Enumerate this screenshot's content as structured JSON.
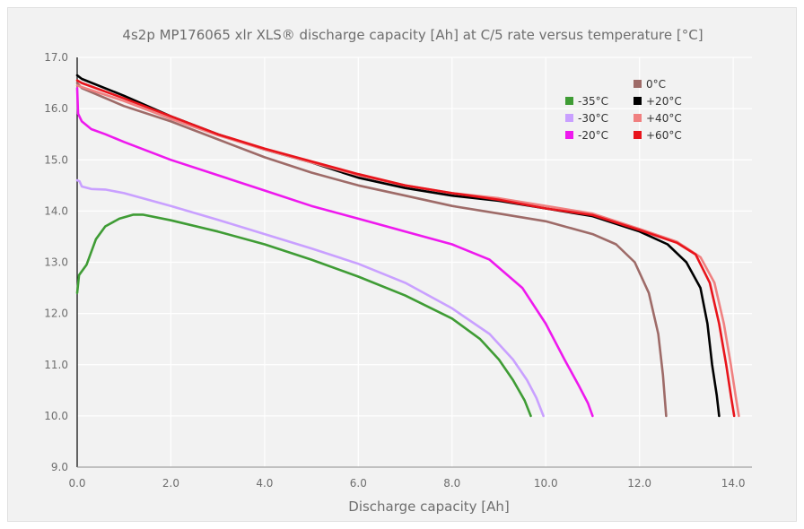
{
  "chart_data": {
    "type": "line",
    "title": "4s2p MP176065 xlr XLS® discharge capacity [Ah] at C/5 rate versus temperature [°C]",
    "xlabel": "Discharge capacity [Ah]",
    "ylabel": "",
    "xlim": [
      0,
      14.4
    ],
    "ylim": [
      9.0,
      17.0
    ],
    "x_ticks": [
      "0.0",
      "2.0",
      "4.0",
      "6.0",
      "8.0",
      "10.0",
      "12.0",
      "14.0"
    ],
    "y_ticks": [
      "9.0",
      "10.0",
      "11.0",
      "12.0",
      "13.0",
      "14.0",
      "15.0",
      "16.0",
      "17.0"
    ],
    "grid": true,
    "legend_position": "top-right",
    "series": [
      {
        "name": "-35°C",
        "color": "#3f9c35",
        "points": [
          [
            0.0,
            12.4
          ],
          [
            0.04,
            12.75
          ],
          [
            0.2,
            12.95
          ],
          [
            0.4,
            13.45
          ],
          [
            0.6,
            13.7
          ],
          [
            0.9,
            13.85
          ],
          [
            1.2,
            13.93
          ],
          [
            1.4,
            13.93
          ],
          [
            2.0,
            13.82
          ],
          [
            3.0,
            13.6
          ],
          [
            4.0,
            13.35
          ],
          [
            5.0,
            13.05
          ],
          [
            6.0,
            12.72
          ],
          [
            7.0,
            12.35
          ],
          [
            8.0,
            11.9
          ],
          [
            8.6,
            11.5
          ],
          [
            9.0,
            11.1
          ],
          [
            9.3,
            10.7
          ],
          [
            9.55,
            10.3
          ],
          [
            9.68,
            10.0
          ]
        ]
      },
      {
        "name": "-30°C",
        "color": "#c9a0ff",
        "points": [
          [
            0.0,
            14.6
          ],
          [
            0.05,
            14.58
          ],
          [
            0.1,
            14.48
          ],
          [
            0.3,
            14.43
          ],
          [
            0.6,
            14.42
          ],
          [
            1.0,
            14.35
          ],
          [
            2.0,
            14.1
          ],
          [
            3.0,
            13.83
          ],
          [
            4.0,
            13.55
          ],
          [
            5.0,
            13.27
          ],
          [
            6.0,
            12.97
          ],
          [
            7.0,
            12.6
          ],
          [
            8.0,
            12.1
          ],
          [
            8.8,
            11.6
          ],
          [
            9.3,
            11.1
          ],
          [
            9.6,
            10.7
          ],
          [
            9.8,
            10.35
          ],
          [
            9.95,
            10.0
          ]
        ]
      },
      {
        "name": "-20°C",
        "color": "#ee19ee",
        "points": [
          [
            0.0,
            16.4
          ],
          [
            0.02,
            15.9
          ],
          [
            0.1,
            15.75
          ],
          [
            0.3,
            15.6
          ],
          [
            0.6,
            15.5
          ],
          [
            1.0,
            15.35
          ],
          [
            2.0,
            15.0
          ],
          [
            3.0,
            14.7
          ],
          [
            4.0,
            14.4
          ],
          [
            5.0,
            14.1
          ],
          [
            6.0,
            13.85
          ],
          [
            7.0,
            13.6
          ],
          [
            8.0,
            13.35
          ],
          [
            8.8,
            13.05
          ],
          [
            9.5,
            12.5
          ],
          [
            10.0,
            11.8
          ],
          [
            10.4,
            11.1
          ],
          [
            10.7,
            10.6
          ],
          [
            10.9,
            10.25
          ],
          [
            11.0,
            10.0
          ]
        ]
      },
      {
        "name": "0°C",
        "color": "#9e6b68",
        "points": [
          [
            0.0,
            16.5
          ],
          [
            0.1,
            16.4
          ],
          [
            1.0,
            16.05
          ],
          [
            2.0,
            15.75
          ],
          [
            3.0,
            15.4
          ],
          [
            4.0,
            15.05
          ],
          [
            5.0,
            14.75
          ],
          [
            6.0,
            14.5
          ],
          [
            7.0,
            14.3
          ],
          [
            8.0,
            14.1
          ],
          [
            9.0,
            13.95
          ],
          [
            10.0,
            13.8
          ],
          [
            11.0,
            13.55
          ],
          [
            11.5,
            13.35
          ],
          [
            11.9,
            13.0
          ],
          [
            12.2,
            12.4
          ],
          [
            12.4,
            11.6
          ],
          [
            12.5,
            10.8
          ],
          [
            12.57,
            10.0
          ]
        ]
      },
      {
        "name": "+20°C",
        "color": "#000000",
        "points": [
          [
            0.0,
            16.65
          ],
          [
            0.1,
            16.58
          ],
          [
            1.0,
            16.25
          ],
          [
            2.0,
            15.85
          ],
          [
            3.0,
            15.5
          ],
          [
            4.0,
            15.2
          ],
          [
            5.0,
            14.95
          ],
          [
            6.0,
            14.65
          ],
          [
            7.0,
            14.45
          ],
          [
            8.0,
            14.3
          ],
          [
            9.0,
            14.2
          ],
          [
            10.0,
            14.05
          ],
          [
            11.0,
            13.9
          ],
          [
            12.0,
            13.6
          ],
          [
            12.6,
            13.35
          ],
          [
            13.0,
            13.0
          ],
          [
            13.3,
            12.5
          ],
          [
            13.45,
            11.8
          ],
          [
            13.55,
            11.0
          ],
          [
            13.65,
            10.4
          ],
          [
            13.7,
            10.0
          ]
        ]
      },
      {
        "name": "+40°C",
        "color": "#f08080",
        "points": [
          [
            0.0,
            16.45
          ],
          [
            0.1,
            16.42
          ],
          [
            1.0,
            16.15
          ],
          [
            2.0,
            15.8
          ],
          [
            3.0,
            15.48
          ],
          [
            4.0,
            15.2
          ],
          [
            5.0,
            14.95
          ],
          [
            6.0,
            14.7
          ],
          [
            7.0,
            14.5
          ],
          [
            8.0,
            14.35
          ],
          [
            9.0,
            14.25
          ],
          [
            10.0,
            14.1
          ],
          [
            11.0,
            13.95
          ],
          [
            12.0,
            13.65
          ],
          [
            12.8,
            13.4
          ],
          [
            13.3,
            13.1
          ],
          [
            13.6,
            12.6
          ],
          [
            13.8,
            11.8
          ],
          [
            13.95,
            11.0
          ],
          [
            14.05,
            10.4
          ],
          [
            14.12,
            10.0
          ]
        ]
      },
      {
        "name": "+60°C",
        "color": "#e8141b",
        "points": [
          [
            0.0,
            16.55
          ],
          [
            0.1,
            16.5
          ],
          [
            1.0,
            16.2
          ],
          [
            2.0,
            15.85
          ],
          [
            3.0,
            15.5
          ],
          [
            4.0,
            15.22
          ],
          [
            5.0,
            14.97
          ],
          [
            6.0,
            14.72
          ],
          [
            7.0,
            14.5
          ],
          [
            8.0,
            14.35
          ],
          [
            9.0,
            14.22
          ],
          [
            10.0,
            14.05
          ],
          [
            11.0,
            13.92
          ],
          [
            12.0,
            13.63
          ],
          [
            12.8,
            13.38
          ],
          [
            13.2,
            13.15
          ],
          [
            13.5,
            12.6
          ],
          [
            13.7,
            11.8
          ],
          [
            13.85,
            11.0
          ],
          [
            13.95,
            10.4
          ],
          [
            14.02,
            10.0
          ]
        ]
      }
    ],
    "legend_columns": [
      [
        "-35°C",
        "-30°C",
        "-20°C"
      ],
      [
        "0°C",
        "+20°C",
        "+40°C",
        "+60°C"
      ]
    ]
  }
}
